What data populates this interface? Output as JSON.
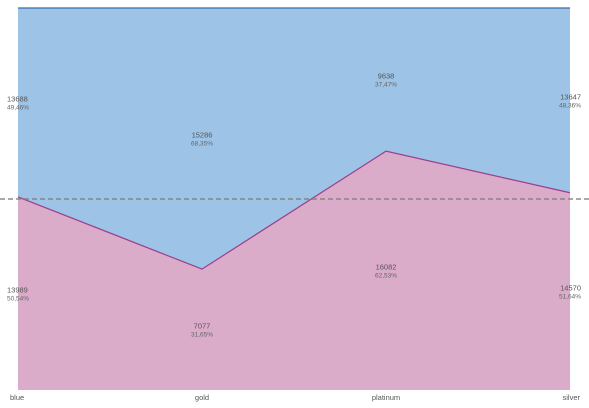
{
  "chart_data": {
    "type": "area",
    "stacking": "percent",
    "categories": [
      "blue",
      "gold",
      "platinum",
      "silver"
    ],
    "series": [
      {
        "values": [
          13989,
          7077,
          16082,
          14570
        ],
        "percent_labels": [
          "50,54%",
          "31,65%",
          "62,53%",
          "51,64%"
        ],
        "color": "#dbabca",
        "line_color": "#9b3f8c"
      },
      {
        "values": [
          13688,
          15286,
          9638,
          13647
        ],
        "percent_labels": [
          "49,46%",
          "68,35%",
          "37,47%",
          "48,36%"
        ],
        "color": "#9dc3e6",
        "line_color": "#3b6fa8"
      }
    ],
    "ylim": [
      0,
      100
    ],
    "reference_line": {
      "value": 50,
      "style": "dashed",
      "color": "#808080"
    },
    "grid": false,
    "legend": "none"
  }
}
